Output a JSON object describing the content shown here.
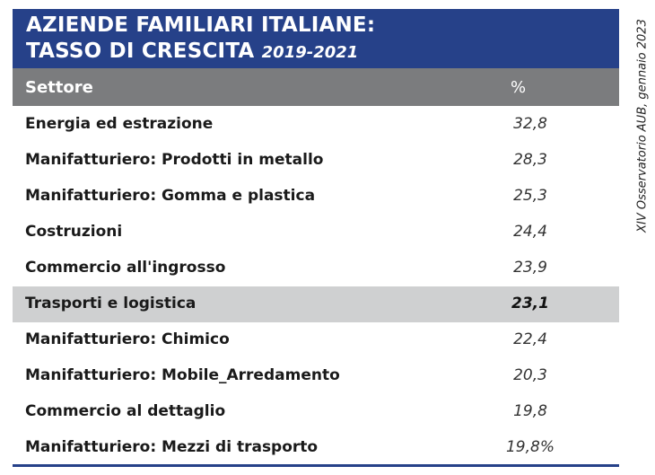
{
  "title": {
    "line1": "AZIENDE FAMILIARI ITALIANE:",
    "line2": "TASSO DI CRESCITA",
    "year": "2019-2021"
  },
  "columns": {
    "sector": "Settore",
    "percent": "%"
  },
  "rows": [
    {
      "label": "Energia ed estrazione",
      "value": "32,8"
    },
    {
      "label": "Manifatturiero: Prodotti in metallo",
      "value": "28,3"
    },
    {
      "label": "Manifatturiero: Gomma e plastica",
      "value": "25,3"
    },
    {
      "label": "Costruzioni",
      "value": "24,4"
    },
    {
      "label": "Commercio all'ingrosso",
      "value": "23,9"
    },
    {
      "label": "Trasporti e logistica",
      "value": "23,1",
      "highlighted": true
    },
    {
      "label": "Manifatturiero: Chimico",
      "value": "22,4"
    },
    {
      "label": "Manifatturiero: Mobile_Arredamento",
      "value": "20,3"
    },
    {
      "label": "Commercio al dettaglio",
      "value": "19,8"
    },
    {
      "label": "Manifatturiero: Mezzi di trasporto",
      "value": "19,8%"
    }
  ],
  "source": "XIV Osservatorio AUB, gennaio 2023",
  "colors": {
    "header_bg": "#264189",
    "column_header_bg": "#7b7c7e",
    "highlight_row_bg": "#cfd0d1"
  }
}
